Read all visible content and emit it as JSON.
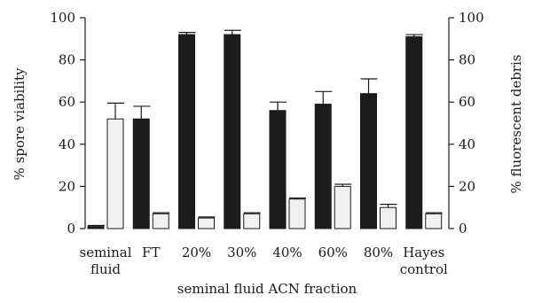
{
  "chart_data": {
    "type": "bar",
    "title": "",
    "categories": [
      [
        "seminal",
        "fluid"
      ],
      [
        "FT"
      ],
      [
        "20%"
      ],
      [
        "30%"
      ],
      [
        "40%"
      ],
      [
        "60%"
      ],
      [
        "80%"
      ],
      [
        "Hayes",
        "control"
      ]
    ],
    "series": [
      {
        "axis": "left",
        "color": "#1c1c1c",
        "values": [
          1,
          52,
          92,
          92,
          56,
          59,
          64,
          91
        ],
        "errors": [
          0.5,
          6,
          1,
          2,
          4,
          6,
          7,
          1
        ]
      },
      {
        "axis": "right",
        "color": "#eff1f0",
        "values": [
          52,
          7,
          5,
          7,
          14,
          20,
          10,
          7
        ],
        "errors": [
          7.5,
          0.5,
          0.5,
          0.5,
          0.5,
          1,
          1.5,
          0.5
        ]
      }
    ],
    "xlabel": "seminal fluid ACN fraction",
    "ylabel_left": "% spore viability",
    "ylabel_right": "% fluorescent debris",
    "ylim_left": [
      0,
      100
    ],
    "ylim_right": [
      0,
      100
    ],
    "yticks": [
      0,
      20,
      40,
      60,
      80,
      100
    ],
    "grid": false,
    "legend": "none"
  }
}
